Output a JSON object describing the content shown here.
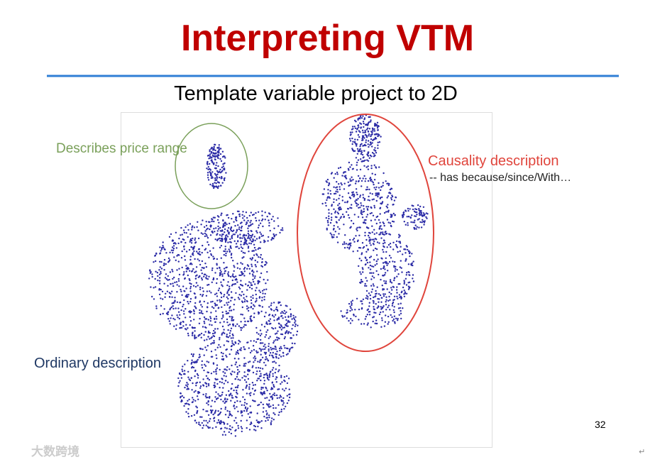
{
  "slide": {
    "title": "Interpreting VTM",
    "subtitle": "Template variable project to 2D",
    "annotations": {
      "price": "Describes price range",
      "causality": "Causality description",
      "causality_note": "-- has because/since/With…",
      "ordinary": "Ordinary description"
    },
    "page_number": "32",
    "watermark": "大数跨境",
    "corner_mark": "↵"
  }
}
